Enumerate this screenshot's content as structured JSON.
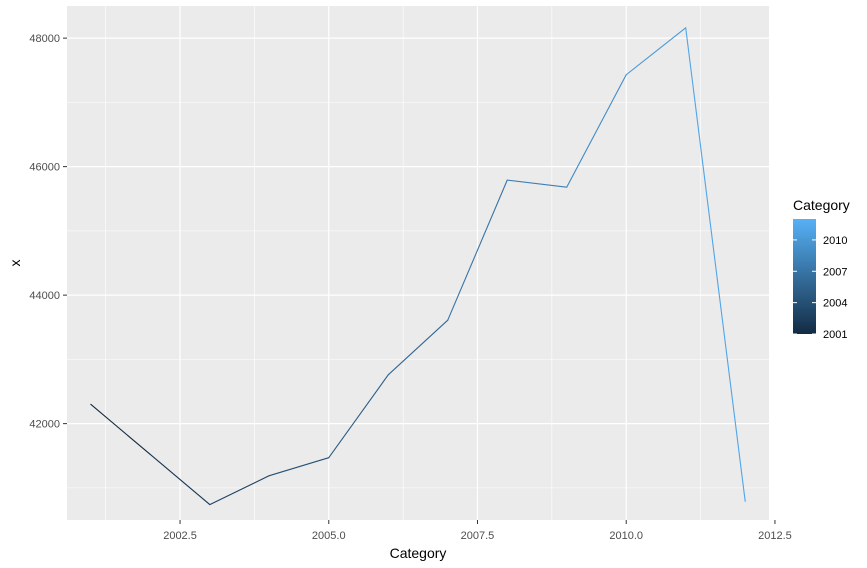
{
  "chart_data": {
    "type": "line",
    "xlabel": "Category",
    "ylabel": "x",
    "x": [
      2001,
      2002,
      2003,
      2004,
      2005,
      2006,
      2007,
      2008,
      2009,
      2010,
      2011,
      2012
    ],
    "series": [
      {
        "values": [
          42300,
          41520,
          40740,
          41190,
          41470,
          42760,
          43610,
          45790,
          45680,
          47430,
          48160,
          40790
        ]
      }
    ],
    "xlim": [
      2000.6,
      2012.4
    ],
    "ylim": [
      40500,
      48500
    ],
    "x_ticks": [
      2002.5,
      2005.0,
      2007.5,
      2010.0,
      2012.5
    ],
    "x_tick_labels": [
      "2002.5",
      "2005.0",
      "2007.5",
      "2010.0",
      "2012.5"
    ],
    "y_ticks": [
      42000,
      44000,
      46000,
      48000
    ],
    "y_tick_labels": [
      "42000",
      "44000",
      "46000",
      "48000"
    ],
    "grid": true,
    "panel_background": "#ebebeb",
    "grid_color": "#ffffff",
    "color_scale": {
      "low": "#132b43",
      "high": "#56b1f7",
      "range": [
        2001,
        2012
      ]
    },
    "legend": {
      "title": "Category",
      "placement": "right",
      "breaks": [
        2001,
        2004,
        2007,
        2010
      ],
      "labels": [
        "2001",
        "2004",
        "2007",
        "2010"
      ]
    }
  }
}
